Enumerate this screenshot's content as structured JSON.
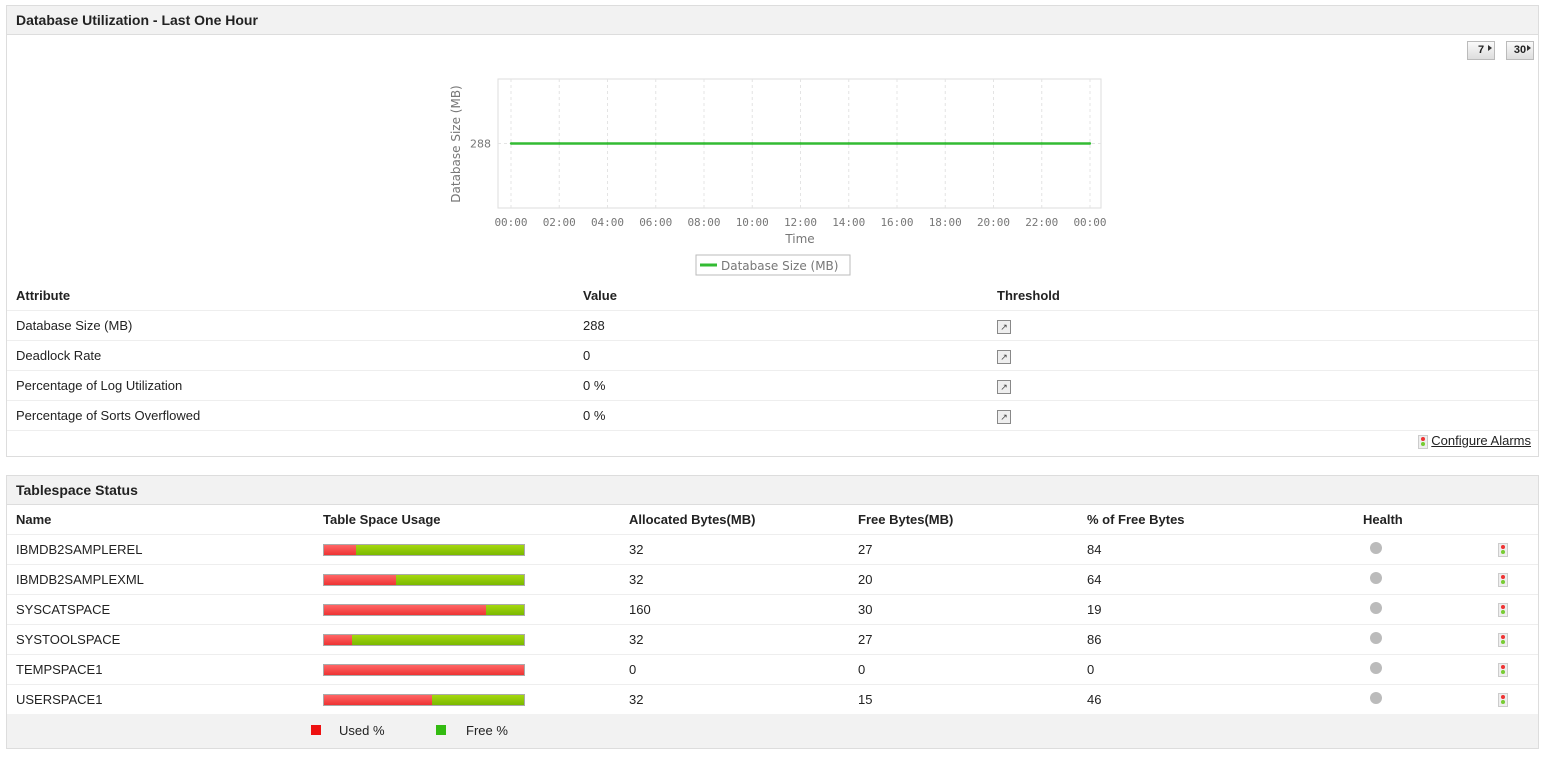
{
  "db": {
    "title": "Database Utilization - Last One Hour",
    "btn7": "7",
    "btn30": "30",
    "chart_data": {
      "type": "line",
      "ylabel": "Database Size (MB)",
      "xlabel": "Time",
      "x": [
        "00:00",
        "02:00",
        "04:00",
        "06:00",
        "08:00",
        "10:00",
        "12:00",
        "14:00",
        "16:00",
        "18:00",
        "20:00",
        "22:00",
        "00:00"
      ],
      "yticks": [
        288
      ],
      "series": [
        {
          "name": "Database Size (MB)",
          "color": "#33bb33",
          "values": [
            288,
            288,
            288,
            288,
            288,
            288,
            288,
            288,
            288,
            288,
            288,
            288,
            288
          ]
        }
      ],
      "grid": true,
      "legend": "bottom"
    },
    "headers": [
      "Attribute",
      "Value",
      "Threshold"
    ],
    "rows": [
      {
        "attr": "Database Size (MB)",
        "value": "288"
      },
      {
        "attr": "Deadlock Rate",
        "value": "0"
      },
      {
        "attr": "Percentage of Log Utilization",
        "value": "0 %"
      },
      {
        "attr": "Percentage of Sorts Overflowed",
        "value": "0 %"
      }
    ],
    "configure": "Configure Alarms"
  },
  "ts": {
    "title": "Tablespace Status",
    "headers": [
      "Name",
      "Table Space Usage",
      "Allocated Bytes(MB)",
      "Free Bytes(MB)",
      "% of Free Bytes",
      "Health"
    ],
    "rows": [
      {
        "name": "IBMDB2SAMPLEREL",
        "used": 16,
        "alloc": "32",
        "free": "27",
        "pct": "84"
      },
      {
        "name": "IBMDB2SAMPLEXML",
        "used": 36,
        "alloc": "32",
        "free": "20",
        "pct": "64"
      },
      {
        "name": "SYSCATSPACE",
        "used": 81,
        "alloc": "160",
        "free": "30",
        "pct": "19"
      },
      {
        "name": "SYSTOOLSPACE",
        "used": 14,
        "alloc": "32",
        "free": "27",
        "pct": "86"
      },
      {
        "name": "TEMPSPACE1",
        "used": 100,
        "alloc": "0",
        "free": "0",
        "pct": "0"
      },
      {
        "name": "USERSPACE1",
        "used": 54,
        "alloc": "32",
        "free": "15",
        "pct": "46"
      }
    ],
    "legend_used": "Used %",
    "legend_free": "Free %",
    "used_color": "#ee1111",
    "free_color": "#33bb11"
  }
}
